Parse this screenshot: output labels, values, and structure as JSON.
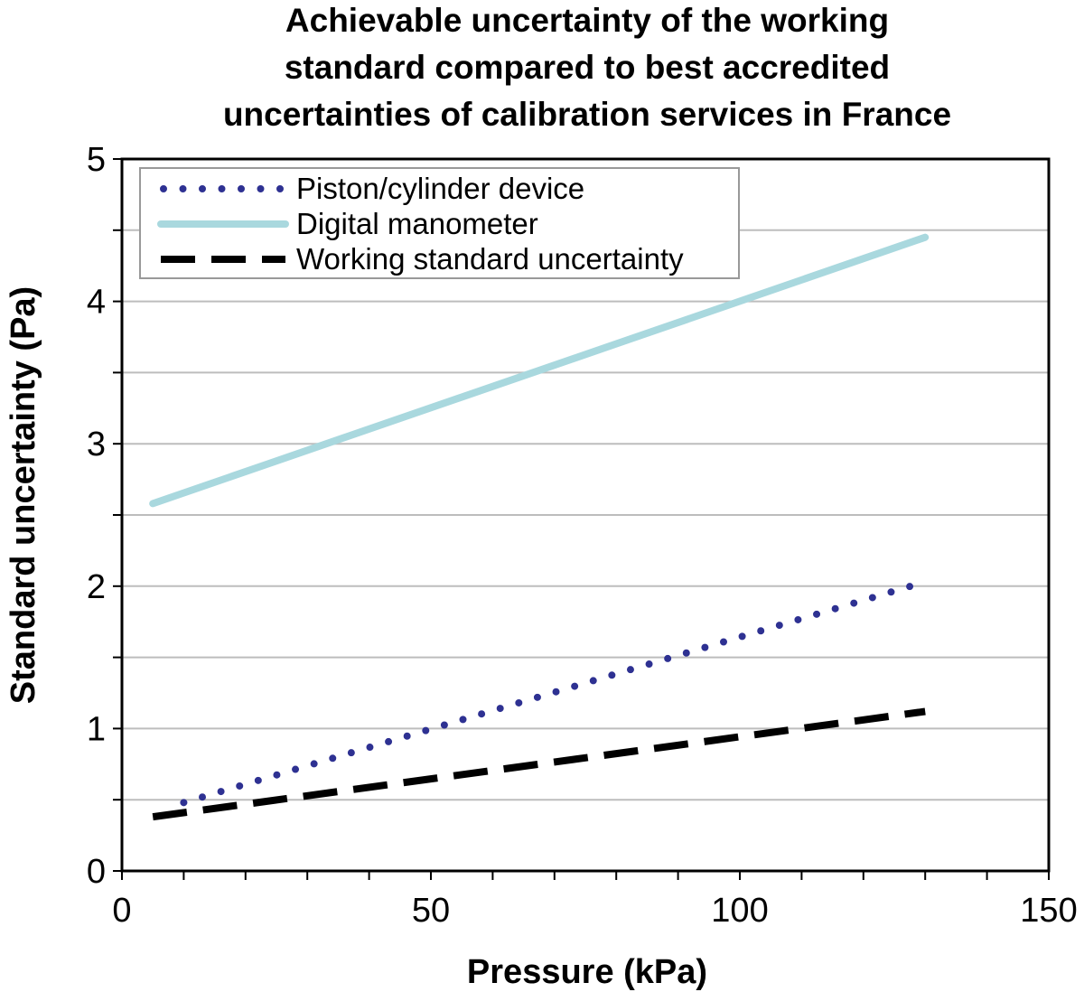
{
  "chart_data": {
    "type": "line",
    "title_lines": [
      "Achievable uncertainty of the working",
      "standard compared to best accredited",
      "uncertainties of calibration services in France"
    ],
    "xlabel": "Pressure (kPa)",
    "ylabel": "Standard uncertainty (Pa)",
    "xlim": [
      0,
      150
    ],
    "ylim": [
      0,
      5
    ],
    "x_ticks": [
      0,
      50,
      100,
      150
    ],
    "x_tick_labels": [
      "0",
      "50",
      "100",
      "150"
    ],
    "y_ticks": [
      0,
      1,
      2,
      3,
      4,
      5
    ],
    "y_tick_labels": [
      "0",
      "1",
      "2",
      "3",
      "4",
      "5"
    ],
    "grid": "horizontal",
    "legend_position": "top-left",
    "series": [
      {
        "name": "Piston/cylinder device",
        "style": "dotted",
        "color": "#2e3192",
        "x": [
          10,
          130
        ],
        "y": [
          0.48,
          2.03
        ]
      },
      {
        "name": "Digital manometer",
        "style": "solid",
        "color": "#a9d8de",
        "x": [
          5,
          130
        ],
        "y": [
          2.58,
          4.45
        ]
      },
      {
        "name": "Working standard uncertainty",
        "style": "dashed",
        "color": "#000000",
        "x": [
          5,
          130
        ],
        "y": [
          0.38,
          1.12
        ]
      }
    ]
  }
}
